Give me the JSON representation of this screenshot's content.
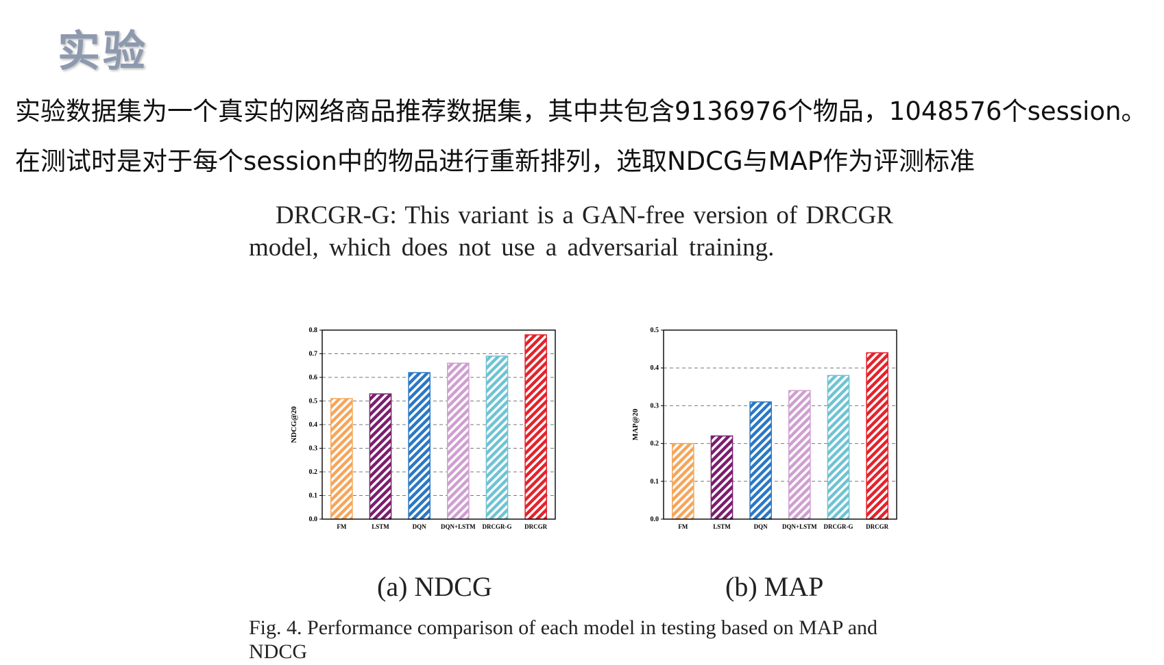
{
  "slide": {
    "title": "实验",
    "line1": "实验数据集为一个真实的网络商品推荐数据集，其中共包含9136976个物品，1048576个session。",
    "line2": "在测试时是对于每个session中的物品进行重新排列，选取NDCG与MAP作为评测标准"
  },
  "paper": {
    "quote_line1": "DRCGR-G: This variant is a GAN-free version of DRCGR",
    "quote_line2": "model, which does not use a adversarial training.",
    "subcaption_a": "(a) NDCG",
    "subcaption_b": "(b) MAP",
    "caption_line1": "Fig. 4.  Performance comparison of each model in testing based on MAP and",
    "caption_line2": "NDCG"
  },
  "chart_data": [
    {
      "type": "bar",
      "ylabel": "NDCG@20",
      "categories": [
        "FM",
        "LSTM",
        "DQN",
        "DQN+LSTM",
        "DRCGR-G",
        "DRCGR"
      ],
      "values": [
        0.51,
        0.53,
        0.62,
        0.66,
        0.69,
        0.78
      ],
      "ylim": [
        0.0,
        0.8
      ],
      "yticks": [
        "0.0",
        "0.1",
        "0.2",
        "0.3",
        "0.4",
        "0.5",
        "0.6",
        "0.7",
        "0.8"
      ],
      "grid": "dashed horizontal",
      "bar_colors": [
        "#f5a65b",
        "#7b1e6e",
        "#2a78c4",
        "#cf9fd0",
        "#6fc3d3",
        "#e3232c"
      ]
    },
    {
      "type": "bar",
      "ylabel": "MAP@20",
      "categories": [
        "FM",
        "LSTM",
        "DQN",
        "DQN+LSTM",
        "DRCGR-G",
        "DRCGR"
      ],
      "values": [
        0.2,
        0.22,
        0.31,
        0.34,
        0.38,
        0.44
      ],
      "ylim": [
        0.0,
        0.5
      ],
      "yticks": [
        "0.0",
        "0.1",
        "0.2",
        "0.3",
        "0.4",
        "0.5"
      ],
      "grid": "dashed horizontal",
      "bar_colors": [
        "#f5a65b",
        "#7b1e6e",
        "#2a78c4",
        "#cf9fd0",
        "#6fc3d3",
        "#e3232c"
      ]
    }
  ]
}
